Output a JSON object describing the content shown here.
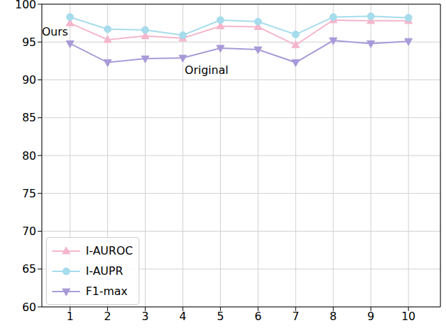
{
  "chart_data": {
    "type": "line",
    "x": [
      1,
      2,
      3,
      4,
      5,
      6,
      7,
      8,
      9,
      10
    ],
    "xlim": [
      0.25,
      10.85
    ],
    "xticks": [
      1,
      2,
      3,
      4,
      5,
      6,
      7,
      8,
      9,
      10
    ],
    "ylim": [
      60,
      100
    ],
    "yticks": [
      60,
      65,
      70,
      75,
      80,
      85,
      90,
      95,
      100
    ],
    "grid": true,
    "legend": "lower left",
    "series": [
      {
        "name": "I-AUROC",
        "color": "#f4b6cc",
        "marker": "triangle-up",
        "values": [
          97.5,
          95.3,
          95.8,
          95.5,
          97.1,
          97.0,
          94.6,
          97.9,
          97.8,
          97.8
        ]
      },
      {
        "name": "I-AUPR",
        "color": "#a6dcec",
        "marker": "circle",
        "values": [
          98.3,
          96.7,
          96.6,
          95.9,
          97.9,
          97.7,
          96.0,
          98.3,
          98.4,
          98.2
        ]
      },
      {
        "name": "F1-max",
        "color": "#a89ad8",
        "marker": "triangle-down",
        "values": [
          94.8,
          92.3,
          92.8,
          92.9,
          94.2,
          94.0,
          92.3,
          95.2,
          94.8,
          95.1
        ]
      }
    ],
    "annotations": [
      {
        "text": "Ours",
        "x": 0.25,
        "y": 96.4
      },
      {
        "text": "Original",
        "x": 4.05,
        "y": 91.3
      }
    ]
  }
}
